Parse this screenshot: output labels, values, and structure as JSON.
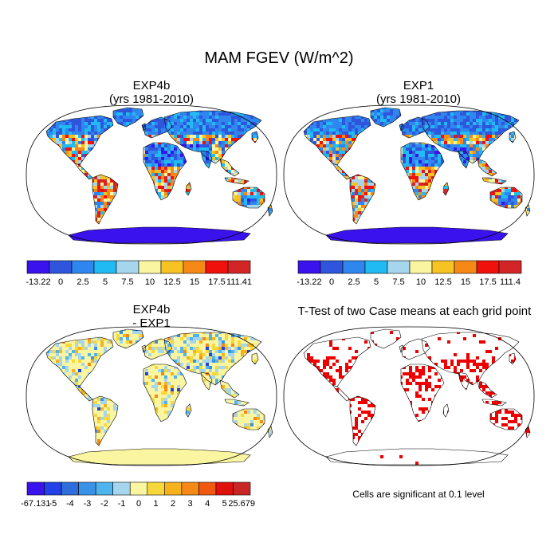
{
  "figure": {
    "title": "MAM FGEV (W/m^2)"
  },
  "panels": [
    {
      "id": "exp4b",
      "title_line1": "EXP4b",
      "title_line2": "(yrs 1981-2010)",
      "style": "climatology"
    },
    {
      "id": "exp1",
      "title_line1": "EXP1",
      "title_line2": "(yrs 1981-2010)",
      "style": "climatology"
    },
    {
      "id": "diff",
      "title_line1": "EXP4b",
      "title_line2": "- EXP1",
      "style": "difference"
    },
    {
      "id": "ttest",
      "title_line1": "T-Test of two Case means at each grid point",
      "title_line2": "",
      "style": "significance"
    }
  ],
  "colorbars": [
    {
      "id": "cbar-exp4b",
      "colors": [
        "#3a12ee",
        "#2f55dd",
        "#2e86ee",
        "#22baf2",
        "#a6d6ee",
        "#faf5a0",
        "#f6c224",
        "#f68916",
        "#f0100c",
        "#d32525"
      ],
      "labels": [
        "-13.22",
        "0",
        "2.5",
        "5",
        "7.5",
        "10",
        "12.5",
        "15",
        "17.5",
        "111.41"
      ]
    },
    {
      "id": "cbar-exp1",
      "colors": [
        "#3a12ee",
        "#2f55dd",
        "#2e86ee",
        "#22baf2",
        "#a6d6ee",
        "#faf5a0",
        "#f6c224",
        "#f68916",
        "#f0100c",
        "#d32525"
      ],
      "labels": [
        "-13.22",
        "0",
        "2.5",
        "5",
        "7.5",
        "10",
        "12.5",
        "15",
        "17.5",
        "111.4"
      ]
    },
    {
      "id": "cbar-diff",
      "colors": [
        "#3a12ee",
        "#2241e8",
        "#2f6ddd",
        "#3a92e8",
        "#4fb3ee",
        "#a6d6ee",
        "#faf5a0",
        "#f6d83a",
        "#f6b21c",
        "#f68916",
        "#f05810",
        "#e0100c",
        "#c92525"
      ],
      "labels": [
        "-67.131",
        "-5",
        "-4",
        "-3",
        "-2",
        "-1",
        "0",
        "1",
        "2",
        "3",
        "4",
        "5",
        "25.679"
      ]
    }
  ],
  "significance_note": "Cells are significant at 0.1 level",
  "colors": {
    "significant": "#ee0000",
    "coast": "#000000"
  }
}
